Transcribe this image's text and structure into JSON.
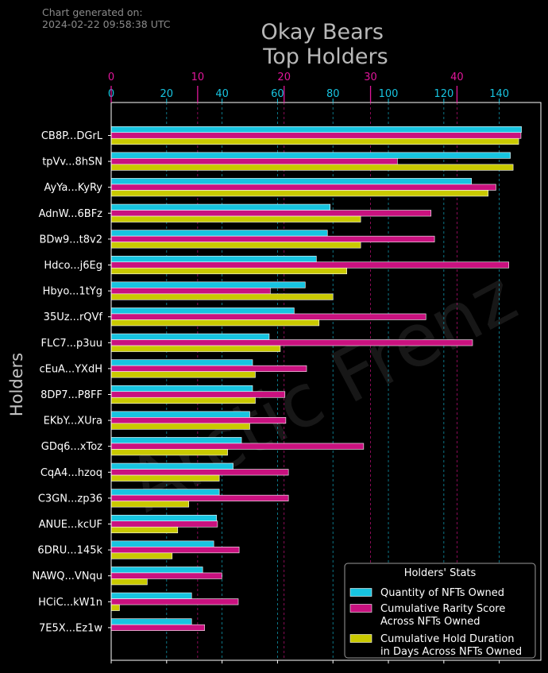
{
  "generated_label": "Chart generated on:",
  "generated_time": "2024-02-22 09:58:38 UTC",
  "watermark": "Arctic Frenz",
  "colors": {
    "background": "#000000",
    "quantity": "#17c4e0",
    "rarity": "#c9117f",
    "hold": "#c9c900",
    "edge": "#ffffff",
    "text": "#ffffff"
  },
  "chart_data": {
    "type": "bar",
    "orientation": "horizontal",
    "title": "Okay Bears\nTop Holders",
    "ylabel": "Holders",
    "categories": [
      "CB8P...DGrL",
      "tpVv...8hSN",
      "AyYa...KyRy",
      "AdnW...6BFz",
      "BDw9...t8v2",
      "Hdco...j6Eg",
      "Hbyo...1tYg",
      "35Uz...rQVf",
      "FLC7...p3uu",
      "cEuA...YXdH",
      "8DP7...P8FF",
      "EKbY...XUra",
      "GDq6...xToz",
      "CqA4...hzoq",
      "C3GN...zp36",
      "ANUE...kcUF",
      "6DRU...145k",
      "NAWQ...VNqu",
      "HCiC...kW1n",
      "7E5X...Ez1w"
    ],
    "axes": {
      "quantity": {
        "lim": [
          0,
          155
        ],
        "ticks": [
          0,
          20,
          40,
          60,
          80,
          100,
          120,
          140
        ]
      },
      "rarity": {
        "lim": [
          0,
          49.7
        ],
        "ticks": [
          0,
          10,
          20,
          30,
          40
        ]
      },
      "hold": {
        "lim": [
          0,
          155
        ]
      }
    },
    "series": [
      {
        "name": "Quantity of NFTs Owned",
        "axis": "quantity",
        "values": [
          148,
          144,
          130,
          79,
          78,
          74,
          70,
          66,
          57,
          51,
          51,
          50,
          47,
          44,
          39,
          38,
          37,
          33,
          29,
          29
        ]
      },
      {
        "name": "Cumulative Rarity Score\nAcross NFTs Owned",
        "axis": "rarity",
        "values": [
          47.4,
          33.1,
          44.5,
          37.0,
          37.4,
          46.0,
          18.4,
          36.4,
          41.8,
          22.6,
          20.1,
          20.2,
          29.2,
          20.5,
          20.5,
          12.3,
          14.8,
          12.8,
          14.7,
          10.8
        ]
      },
      {
        "name": "Cumulative Hold Duration\nin Days Across NFTs Owned",
        "axis": "hold",
        "values": [
          147,
          145,
          136,
          90,
          90,
          85,
          80,
          75,
          61,
          52,
          52,
          50,
          42,
          39,
          28,
          24,
          22,
          13,
          3,
          0
        ]
      }
    ],
    "grid": true,
    "legend": {
      "title": "Holders' Stats",
      "position": "lower-right"
    }
  }
}
